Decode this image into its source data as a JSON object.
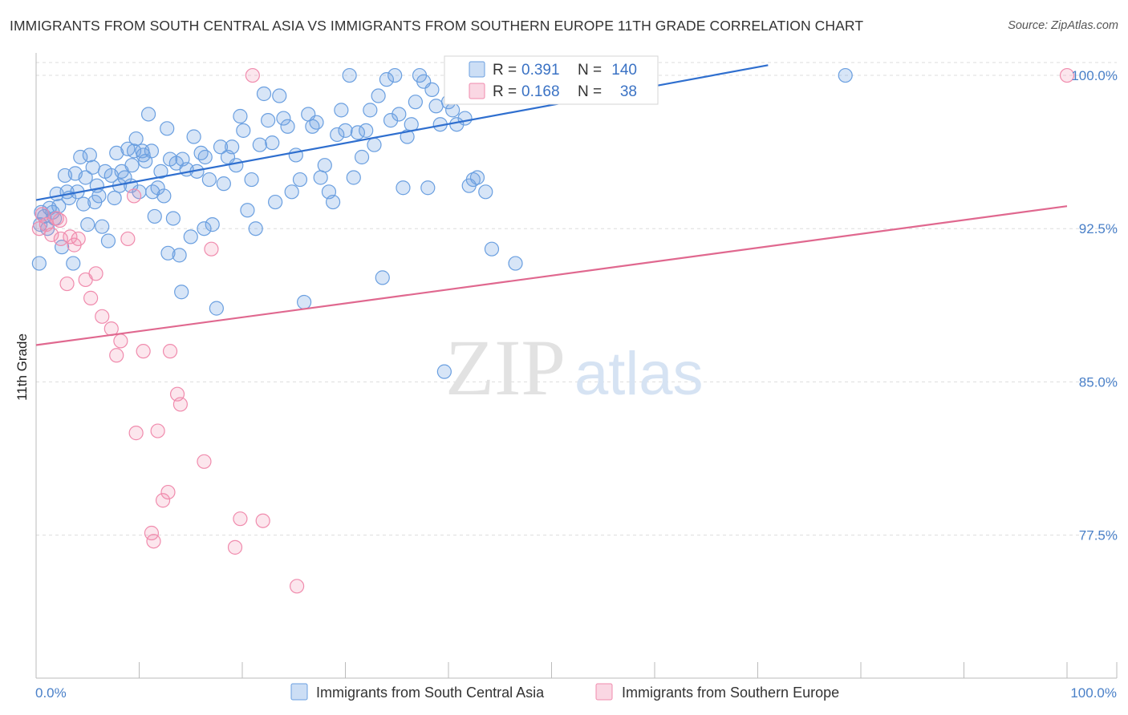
{
  "header": {
    "title": "IMMIGRANTS FROM SOUTH CENTRAL ASIA VS IMMIGRANTS FROM SOUTHERN EUROPE 11TH GRADE CORRELATION CHART",
    "source": "Source: ZipAtlas.com"
  },
  "watermark": {
    "zip": "ZIP",
    "atlas": "atlas"
  },
  "colors": {
    "blue": "#6a9fe0",
    "blue_fill": "rgba(110,160,225,0.28)",
    "blue_line": "#2f6fcf",
    "pink": "#f08bad",
    "pink_fill": "rgba(240,140,175,0.22)",
    "pink_line": "#e0688f",
    "grid": "#dddddd",
    "tick_text": "#4a80c8"
  },
  "legend": {
    "r_label": "R =",
    "n_label": "N =",
    "rows": [
      {
        "r": "0.391",
        "n": "140"
      },
      {
        "r": "0.168",
        "n": "38"
      }
    ]
  },
  "bottom_legend": [
    {
      "label": "Immigrants from South Central Asia"
    },
    {
      "label": "Immigrants from Southern Europe"
    }
  ],
  "chart_data": {
    "type": "scatter",
    "title": "IMMIGRANTS FROM SOUTH CENTRAL ASIA VS IMMIGRANTS FROM SOUTHERN EUROPE 11TH GRADE CORRELATION CHART",
    "xlabel": "",
    "ylabel": "11th Grade",
    "xlim": [
      0,
      100
    ],
    "ylim": [
      70.5,
      101.1
    ],
    "x_tick_labels": [
      "0.0%",
      "100.0%"
    ],
    "y_ticks": [
      100.0,
      92.5,
      85.0,
      77.5
    ],
    "y_tick_labels": [
      "100.0%",
      "92.5%",
      "85.0%",
      "77.5%"
    ],
    "grid": true,
    "series": [
      {
        "name": "Immigrants from South Central Asia",
        "r": 0.391,
        "n": 140,
        "trend": [
          [
            0,
            93.9
          ],
          [
            71,
            100.5
          ]
        ],
        "points": [
          [
            0.3,
            90.8
          ],
          [
            0.4,
            92.7
          ],
          [
            0.5,
            93.3
          ],
          [
            0.8,
            93.1
          ],
          [
            1.1,
            92.5
          ],
          [
            1.3,
            93.5
          ],
          [
            1.6,
            93.3
          ],
          [
            1.8,
            93.0
          ],
          [
            2.0,
            94.2
          ],
          [
            2.2,
            93.6
          ],
          [
            2.5,
            91.6
          ],
          [
            2.8,
            95.1
          ],
          [
            3.0,
            94.3
          ],
          [
            3.2,
            94.0
          ],
          [
            3.6,
            90.8
          ],
          [
            3.8,
            95.2
          ],
          [
            4.0,
            94.3
          ],
          [
            4.3,
            96.0
          ],
          [
            4.6,
            93.7
          ],
          [
            4.8,
            95.0
          ],
          [
            5.0,
            92.7
          ],
          [
            5.2,
            96.1
          ],
          [
            5.5,
            95.5
          ],
          [
            5.7,
            93.8
          ],
          [
            5.9,
            94.6
          ],
          [
            6.1,
            94.1
          ],
          [
            6.4,
            92.6
          ],
          [
            6.7,
            95.3
          ],
          [
            7.0,
            91.9
          ],
          [
            7.3,
            95.1
          ],
          [
            7.6,
            94.0
          ],
          [
            7.8,
            96.2
          ],
          [
            8.1,
            94.6
          ],
          [
            8.3,
            95.3
          ],
          [
            8.6,
            95.0
          ],
          [
            8.9,
            96.4
          ],
          [
            9.2,
            94.6
          ],
          [
            9.5,
            96.3
          ],
          [
            9.7,
            96.9
          ],
          [
            10.0,
            94.3
          ],
          [
            10.3,
            96.3
          ],
          [
            10.6,
            95.8
          ],
          [
            10.9,
            98.1
          ],
          [
            11.2,
            96.3
          ],
          [
            11.5,
            93.1
          ],
          [
            11.8,
            94.5
          ],
          [
            12.1,
            95.3
          ],
          [
            12.4,
            94.1
          ],
          [
            12.7,
            97.4
          ],
          [
            13.0,
            95.9
          ],
          [
            13.3,
            93.0
          ],
          [
            13.6,
            95.7
          ],
          [
            13.9,
            91.2
          ],
          [
            14.2,
            95.9
          ],
          [
            14.6,
            95.4
          ],
          [
            15.0,
            92.1
          ],
          [
            15.3,
            97.0
          ],
          [
            15.6,
            95.3
          ],
          [
            16.0,
            96.2
          ],
          [
            16.4,
            96.0
          ],
          [
            16.8,
            94.9
          ],
          [
            17.1,
            92.7
          ],
          [
            17.5,
            88.6
          ],
          [
            17.9,
            96.5
          ],
          [
            18.2,
            94.7
          ],
          [
            18.6,
            96.0
          ],
          [
            19.0,
            96.5
          ],
          [
            19.4,
            95.6
          ],
          [
            19.8,
            98.0
          ],
          [
            20.1,
            97.3
          ],
          [
            20.5,
            93.4
          ],
          [
            20.9,
            94.9
          ],
          [
            21.3,
            92.5
          ],
          [
            21.7,
            96.6
          ],
          [
            22.1,
            99.1
          ],
          [
            22.5,
            97.8
          ],
          [
            22.9,
            96.7
          ],
          [
            23.2,
            93.8
          ],
          [
            23.6,
            99.0
          ],
          [
            24.0,
            97.9
          ],
          [
            24.4,
            97.5
          ],
          [
            24.8,
            94.3
          ],
          [
            25.2,
            96.1
          ],
          [
            25.6,
            94.9
          ],
          [
            26.0,
            88.9
          ],
          [
            26.4,
            98.1
          ],
          [
            26.8,
            97.5
          ],
          [
            27.2,
            97.7
          ],
          [
            27.6,
            95.0
          ],
          [
            28.0,
            95.6
          ],
          [
            28.4,
            94.3
          ],
          [
            28.8,
            93.8
          ],
          [
            29.2,
            97.1
          ],
          [
            29.6,
            98.3
          ],
          [
            30.0,
            97.3
          ],
          [
            30.4,
            100.0
          ],
          [
            30.8,
            95.0
          ],
          [
            31.2,
            97.2
          ],
          [
            31.6,
            96.0
          ],
          [
            32.0,
            97.3
          ],
          [
            32.4,
            98.3
          ],
          [
            32.8,
            96.6
          ],
          [
            33.2,
            99.0
          ],
          [
            33.6,
            90.1
          ],
          [
            34.0,
            99.8
          ],
          [
            34.4,
            97.8
          ],
          [
            34.8,
            100.0
          ],
          [
            35.2,
            98.1
          ],
          [
            35.6,
            94.5
          ],
          [
            36.0,
            97.0
          ],
          [
            36.4,
            97.6
          ],
          [
            36.8,
            98.7
          ],
          [
            37.2,
            100.0
          ],
          [
            37.6,
            99.7
          ],
          [
            38.0,
            94.5
          ],
          [
            38.4,
            99.3
          ],
          [
            38.8,
            98.5
          ],
          [
            39.2,
            97.6
          ],
          [
            39.6,
            85.5
          ],
          [
            40.0,
            98.7
          ],
          [
            40.4,
            98.3
          ],
          [
            40.8,
            97.6
          ],
          [
            41.2,
            99.0
          ],
          [
            41.6,
            97.9
          ],
          [
            42.0,
            94.6
          ],
          [
            42.4,
            94.9
          ],
          [
            42.8,
            95.0
          ],
          [
            43.6,
            94.3
          ],
          [
            44.2,
            91.5
          ],
          [
            46.5,
            90.8
          ],
          [
            78.5,
            100.0
          ],
          [
            9.3,
            95.6
          ],
          [
            10.4,
            96.1
          ],
          [
            11.3,
            94.3
          ],
          [
            12.8,
            91.3
          ],
          [
            14.1,
            89.4
          ],
          [
            16.3,
            92.5
          ]
        ]
      },
      {
        "name": "Immigrants from Southern Europe",
        "r": 0.168,
        "n": 38,
        "trend": [
          [
            0,
            86.8
          ],
          [
            100,
            93.6
          ]
        ],
        "points": [
          [
            0.3,
            92.5
          ],
          [
            0.6,
            93.2
          ],
          [
            1.0,
            92.7
          ],
          [
            1.5,
            92.2
          ],
          [
            2.0,
            93.0
          ],
          [
            2.3,
            92.9
          ],
          [
            2.4,
            92.0
          ],
          [
            3.0,
            89.8
          ],
          [
            3.3,
            92.1
          ],
          [
            3.7,
            91.7
          ],
          [
            4.1,
            92.0
          ],
          [
            4.8,
            90.0
          ],
          [
            5.3,
            89.1
          ],
          [
            5.8,
            90.3
          ],
          [
            6.4,
            88.2
          ],
          [
            7.3,
            87.6
          ],
          [
            7.8,
            86.3
          ],
          [
            8.2,
            87.0
          ],
          [
            8.9,
            92.0
          ],
          [
            9.5,
            94.1
          ],
          [
            9.7,
            82.5
          ],
          [
            10.4,
            86.5
          ],
          [
            11.2,
            77.6
          ],
          [
            11.4,
            77.2
          ],
          [
            11.8,
            82.6
          ],
          [
            12.3,
            79.2
          ],
          [
            12.8,
            79.6
          ],
          [
            13.0,
            86.5
          ],
          [
            13.7,
            84.4
          ],
          [
            14.0,
            83.9
          ],
          [
            16.3,
            81.1
          ],
          [
            17.0,
            91.5
          ],
          [
            19.3,
            76.9
          ],
          [
            19.8,
            78.3
          ],
          [
            21.0,
            100.0
          ],
          [
            22.0,
            78.2
          ],
          [
            25.3,
            75.0
          ],
          [
            100.0,
            100.0
          ]
        ]
      }
    ]
  }
}
